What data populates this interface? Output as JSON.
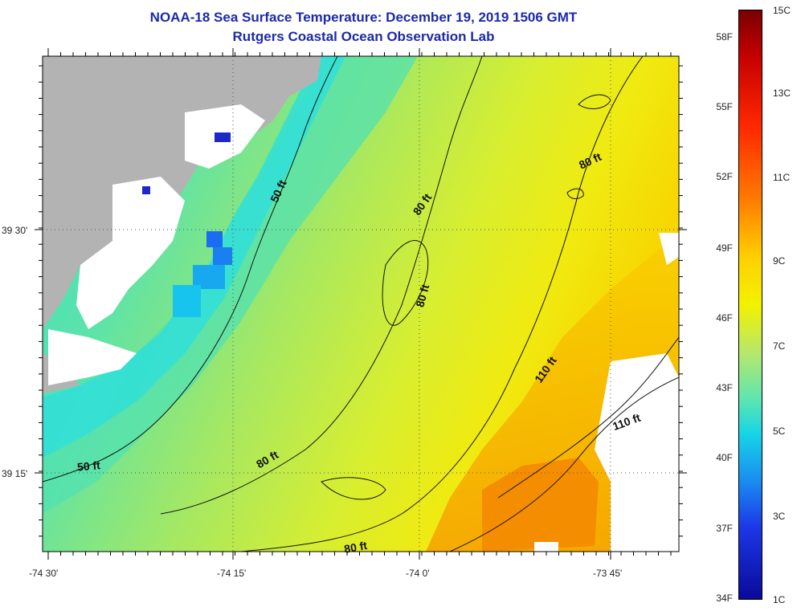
{
  "title": {
    "line1": "NOAA-18 Sea Surface Temperature:  December 19, 2019 1506 GMT",
    "line2": "Rutgers Coastal Ocean Observation Lab"
  },
  "axes": {
    "x_tick_labels": [
      "-74 30'",
      "-74 15'",
      "-74 0'",
      "-73 45'"
    ],
    "y_tick_labels": [
      "39 30'",
      "39 15'"
    ]
  },
  "contour_labels": [
    "50 ft",
    "80 ft",
    "80 ft",
    "80 ft",
    "110 ft",
    "110 ft",
    "50 ft",
    "80 ft",
    "80 ft"
  ],
  "colorbar": {
    "fahrenheit_labels": [
      "58F",
      "55F",
      "52F",
      "49F",
      "46F",
      "43F",
      "40F",
      "37F",
      "34F"
    ],
    "celsius_labels": [
      "15C",
      "13C",
      "11C",
      "9C",
      "7C",
      "5C",
      "3C",
      "1C"
    ]
  },
  "colors": {
    "title": "#1c2aa8",
    "land": "#b3b3b3",
    "no_data": "#ffffff"
  }
}
